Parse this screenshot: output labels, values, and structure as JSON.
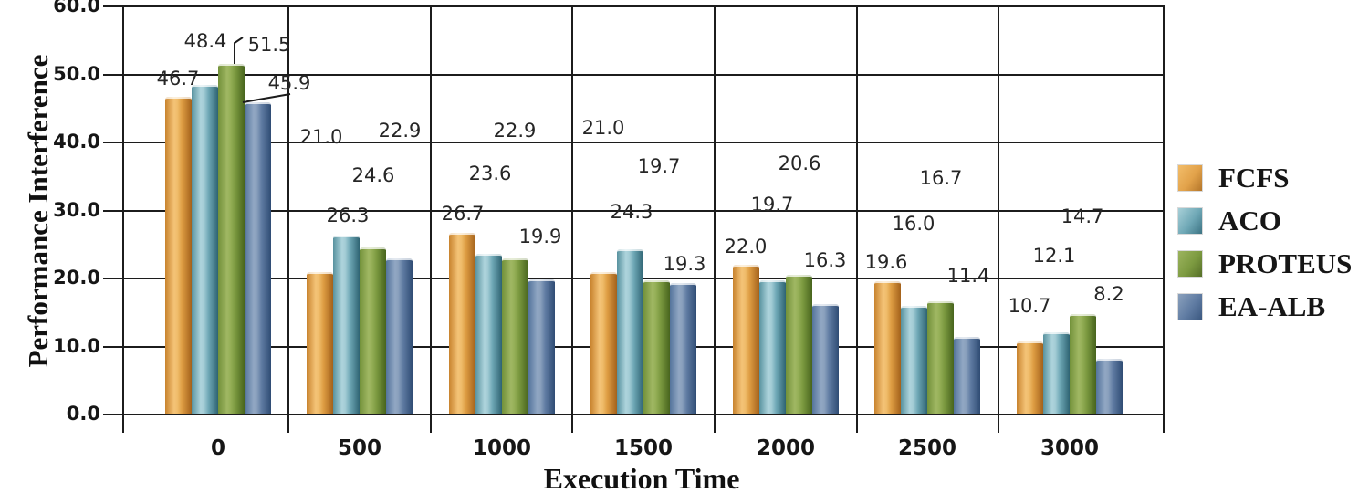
{
  "chart_data": {
    "type": "bar",
    "title": "",
    "xlabel": "Execution Time",
    "ylabel": "Performance Interference",
    "categories": [
      "0",
      "500",
      "1000",
      "1500",
      "2000",
      "2500",
      "3000"
    ],
    "series": [
      {
        "name": "FCFS",
        "color": "#E8A33B",
        "values": [
          46.7,
          21.0,
          26.7,
          21.0,
          22.0,
          19.6,
          10.7
        ]
      },
      {
        "name": "ACO",
        "color": "#5D9FAF",
        "values": [
          48.4,
          26.3,
          23.6,
          24.3,
          19.7,
          16.0,
          12.1
        ]
      },
      {
        "name": "PROTEUS",
        "color": "#7C9A40",
        "values": [
          51.5,
          24.6,
          22.9,
          19.7,
          20.6,
          16.7,
          14.7
        ]
      },
      {
        "name": "EA-ALB",
        "color": "#4C6D96",
        "values": [
          45.9,
          22.9,
          19.9,
          19.3,
          16.3,
          11.4,
          8.2
        ]
      }
    ],
    "ylim": [
      0,
      60
    ],
    "ytick_step": 10,
    "ytick_labels": [
      "0.0",
      "10.0",
      "20.0",
      "30.0",
      "40.0",
      "50.0",
      "60.0"
    ],
    "grid": true,
    "gridline_color": "#1c1c1c",
    "legend_position": "right",
    "value_labels": true
  }
}
